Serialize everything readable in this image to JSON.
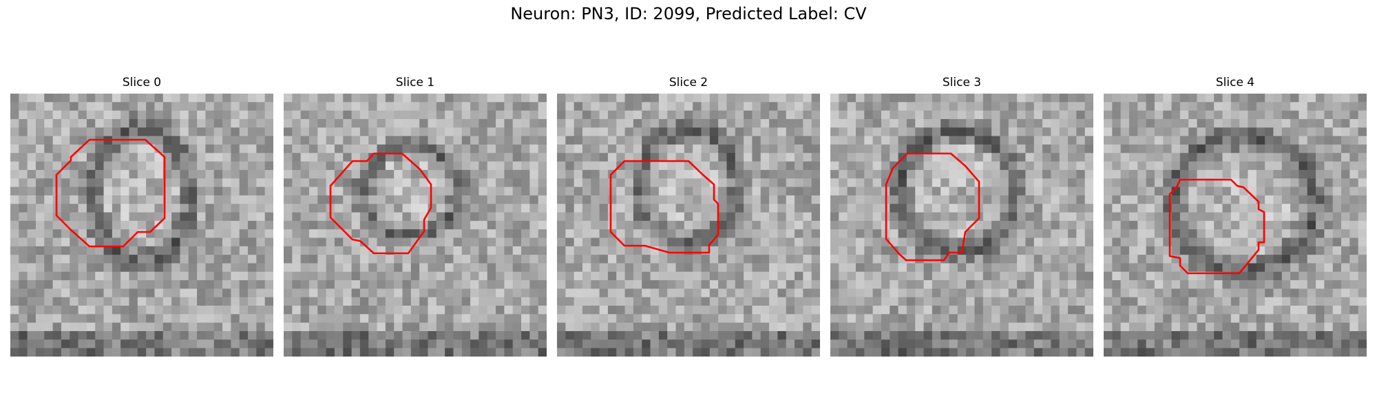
{
  "figure": {
    "title": "Neuron: PN3, ID: 2099, Predicted Label: CV"
  },
  "panels": [
    {
      "title": "Slice 0"
    },
    {
      "title": "Slice 1"
    },
    {
      "title": "Slice 2"
    },
    {
      "title": "Slice 3"
    },
    {
      "title": "Slice 4"
    }
  ],
  "colors": {
    "contour": "#ff0000",
    "background": "#ffffff"
  }
}
